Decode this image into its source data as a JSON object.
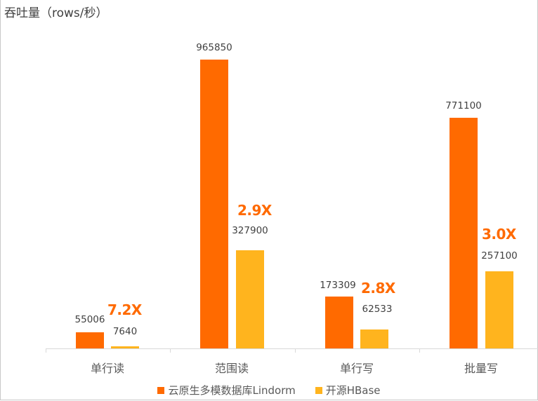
{
  "chart_data": {
    "type": "bar",
    "title": "",
    "ylabel": "吞吐量（rows/秒）",
    "xlabel": "",
    "categories": [
      "单行读",
      "范围读",
      "单行写",
      "批量写"
    ],
    "series": [
      {
        "name": "云原生多模数据库Lindorm",
        "color": "#ff6a00",
        "values": [
          55006,
          965850,
          173309,
          771100
        ]
      },
      {
        "name": "开源HBase",
        "color": "#ffb41e",
        "values": [
          7640,
          327900,
          62533,
          257100
        ]
      }
    ],
    "annotations": [
      "7.2X",
      "2.9X",
      "2.8X",
      "3.0X"
    ],
    "ylim": [
      0,
      965850
    ],
    "grid": false,
    "legend_position": "bottom"
  },
  "labels": {
    "ytitle": "吞吐量（rows/秒）",
    "cats": [
      "单行读",
      "范围读",
      "单行写",
      "批量写"
    ],
    "lindorm_vals": [
      "55006",
      "965850",
      "173309",
      "771100"
    ],
    "hbase_vals": [
      "7640",
      "327900",
      "62533",
      "257100"
    ],
    "ratios": [
      "7.2X",
      "2.9X",
      "2.8X",
      "3.0X"
    ],
    "legend": [
      "云原生多模数据库Lindorm",
      "开源HBase"
    ]
  }
}
